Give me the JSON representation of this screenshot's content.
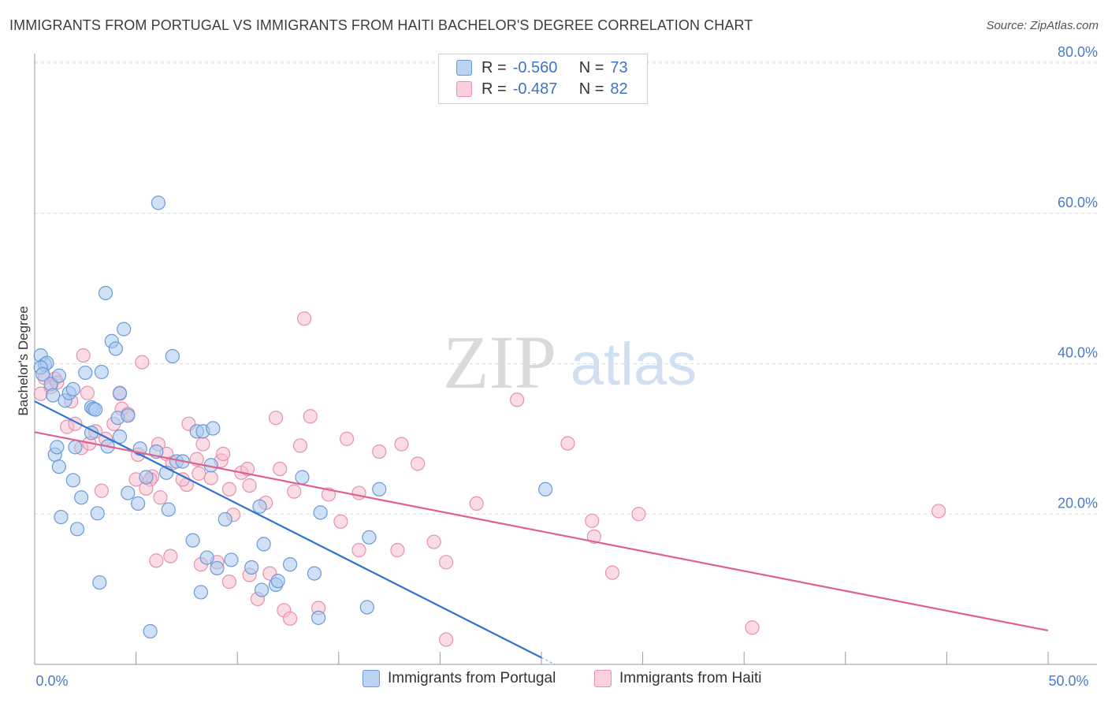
{
  "title": "IMMIGRANTS FROM PORTUGAL VS IMMIGRANTS FROM HAITI BACHELOR'S DEGREE CORRELATION CHART",
  "source": "Source: ZipAtlas.com",
  "watermark": {
    "zip": "ZIP",
    "atlas": "atlas"
  },
  "legend": {
    "r_label": "R =",
    "n_label": "N =",
    "portugal": {
      "r": "-0.560",
      "n": "73"
    },
    "haiti": {
      "r": "-0.487",
      "n": "82"
    }
  },
  "bottom_legend": {
    "portugal": "Immigrants from Portugal",
    "haiti": "Immigrants from Haiti"
  },
  "colors": {
    "portugal_fill": "#a9c8ef",
    "portugal_stroke": "#6b9ad8",
    "portugal_line": "#2f74d0",
    "haiti_fill": "#f6bfd0",
    "haiti_stroke": "#e890ac",
    "haiti_line": "#e0628c",
    "tick_text": "#4a7bc8"
  },
  "chart_data": {
    "type": "scatter",
    "title": "IMMIGRANTS FROM PORTUGAL VS IMMIGRANTS FROM HAITI BACHELOR'S DEGREE CORRELATION CHART",
    "xlabel": "",
    "ylabel": "Bachelor's Degree",
    "xlim": [
      0,
      50
    ],
    "ylim": [
      0,
      80
    ],
    "x_tick_labels": [
      "0.0%",
      "50.0%"
    ],
    "y_ticks": [
      20,
      40,
      60,
      80
    ],
    "y_tick_labels": [
      "20.0%",
      "40.0%",
      "60.0%",
      "80.0%"
    ],
    "series": [
      {
        "name": "Immigrants from Portugal",
        "r": -0.56,
        "n": 73,
        "trend": {
          "x0": 0,
          "y0": 35.0,
          "x1": 25.0,
          "y1": 0.9
        },
        "points": [
          [
            0.3,
            41.1
          ],
          [
            0.5,
            39.9
          ],
          [
            0.6,
            40.1
          ],
          [
            0.3,
            39.5
          ],
          [
            0.4,
            38.6
          ],
          [
            0.8,
            37.3
          ],
          [
            1.2,
            38.4
          ],
          [
            0.9,
            35.8
          ],
          [
            1.5,
            35.1
          ],
          [
            1.7,
            36.1
          ],
          [
            1.9,
            36.6
          ],
          [
            2.5,
            38.8
          ],
          [
            3.3,
            38.9
          ],
          [
            3.8,
            43.0
          ],
          [
            4.0,
            42.0
          ],
          [
            4.4,
            44.6
          ],
          [
            3.5,
            49.4
          ],
          [
            6.1,
            61.4
          ],
          [
            6.8,
            41.0
          ],
          [
            2.8,
            34.2
          ],
          [
            2.9,
            34.0
          ],
          [
            2.8,
            30.8
          ],
          [
            3.6,
            29.0
          ],
          [
            4.1,
            32.8
          ],
          [
            4.6,
            33.1
          ],
          [
            4.2,
            36.1
          ],
          [
            4.2,
            30.3
          ],
          [
            3.0,
            33.9
          ],
          [
            1.0,
            27.9
          ],
          [
            1.1,
            28.9
          ],
          [
            1.2,
            26.3
          ],
          [
            2.0,
            28.9
          ],
          [
            1.9,
            24.5
          ],
          [
            2.3,
            22.2
          ],
          [
            1.3,
            19.6
          ],
          [
            2.1,
            18.0
          ],
          [
            3.1,
            20.1
          ],
          [
            3.2,
            10.9
          ],
          [
            4.6,
            22.8
          ],
          [
            5.1,
            21.4
          ],
          [
            5.2,
            28.7
          ],
          [
            5.5,
            24.9
          ],
          [
            6.0,
            28.3
          ],
          [
            6.5,
            25.5
          ],
          [
            6.6,
            20.6
          ],
          [
            7.0,
            27.0
          ],
          [
            7.3,
            27.0
          ],
          [
            7.8,
            16.5
          ],
          [
            8.0,
            31.0
          ],
          [
            8.3,
            31.0
          ],
          [
            8.8,
            31.4
          ],
          [
            8.7,
            26.5
          ],
          [
            9.4,
            19.3
          ],
          [
            9.7,
            13.9
          ],
          [
            8.5,
            14.2
          ],
          [
            9.0,
            12.8
          ],
          [
            8.2,
            9.6
          ],
          [
            10.7,
            12.9
          ],
          [
            11.1,
            21.0
          ],
          [
            11.3,
            16.0
          ],
          [
            11.2,
            9.9
          ],
          [
            11.9,
            10.6
          ],
          [
            12.0,
            11.1
          ],
          [
            12.6,
            13.3
          ],
          [
            13.2,
            24.9
          ],
          [
            13.8,
            12.1
          ],
          [
            14.0,
            6.2
          ],
          [
            14.1,
            20.2
          ],
          [
            16.5,
            16.9
          ],
          [
            16.4,
            7.6
          ],
          [
            17.0,
            23.3
          ],
          [
            25.2,
            23.3
          ],
          [
            5.7,
            4.4
          ]
        ]
      },
      {
        "name": "Immigrants from Haiti",
        "r": -0.487,
        "n": 82,
        "trend": {
          "x0": 0,
          "y0": 30.9,
          "x1": 50,
          "y1": 4.5
        },
        "points": [
          [
            0.3,
            36.0
          ],
          [
            0.5,
            38.1
          ],
          [
            0.8,
            36.9
          ],
          [
            1.0,
            38.0
          ],
          [
            1.1,
            37.5
          ],
          [
            1.8,
            35.0
          ],
          [
            2.4,
            41.1
          ],
          [
            2.6,
            36.1
          ],
          [
            1.6,
            31.6
          ],
          [
            2.0,
            32.0
          ],
          [
            2.3,
            28.8
          ],
          [
            2.7,
            29.4
          ],
          [
            3.0,
            31.0
          ],
          [
            3.5,
            30.0
          ],
          [
            3.9,
            32.0
          ],
          [
            4.3,
            34.0
          ],
          [
            4.6,
            33.3
          ],
          [
            4.2,
            36.0
          ],
          [
            5.3,
            40.2
          ],
          [
            5.1,
            27.9
          ],
          [
            5.8,
            25.0
          ],
          [
            6.1,
            29.3
          ],
          [
            6.5,
            28.0
          ],
          [
            6.8,
            26.8
          ],
          [
            5.0,
            24.6
          ],
          [
            5.7,
            24.6
          ],
          [
            5.5,
            23.4
          ],
          [
            6.2,
            22.2
          ],
          [
            6.0,
            13.8
          ],
          [
            6.7,
            14.4
          ],
          [
            3.3,
            23.1
          ],
          [
            7.6,
            32.0
          ],
          [
            8.0,
            27.3
          ],
          [
            8.3,
            29.3
          ],
          [
            7.5,
            23.9
          ],
          [
            7.3,
            24.6
          ],
          [
            8.1,
            25.4
          ],
          [
            8.7,
            24.8
          ],
          [
            9.2,
            27.1
          ],
          [
            9.3,
            28.0
          ],
          [
            9.6,
            23.3
          ],
          [
            10.2,
            25.5
          ],
          [
            10.5,
            26.0
          ],
          [
            10.6,
            23.8
          ],
          [
            9.8,
            19.9
          ],
          [
            9.0,
            13.6
          ],
          [
            9.6,
            11.0
          ],
          [
            10.6,
            11.9
          ],
          [
            11.0,
            8.7
          ],
          [
            11.4,
            21.5
          ],
          [
            11.6,
            12.1
          ],
          [
            11.9,
            32.8
          ],
          [
            12.1,
            26.0
          ],
          [
            12.3,
            7.2
          ],
          [
            12.6,
            6.1
          ],
          [
            12.8,
            23.0
          ],
          [
            13.1,
            29.1
          ],
          [
            13.6,
            33.0
          ],
          [
            13.3,
            46.0
          ],
          [
            14.0,
            7.5
          ],
          [
            14.5,
            22.6
          ],
          [
            15.1,
            19.0
          ],
          [
            15.4,
            30.0
          ],
          [
            16.0,
            22.8
          ],
          [
            17.0,
            28.3
          ],
          [
            16.0,
            15.2
          ],
          [
            17.9,
            15.2
          ],
          [
            18.1,
            29.3
          ],
          [
            18.9,
            26.7
          ],
          [
            19.7,
            16.3
          ],
          [
            20.3,
            13.6
          ],
          [
            20.3,
            3.3
          ],
          [
            21.8,
            21.4
          ],
          [
            23.8,
            35.2
          ],
          [
            26.3,
            29.4
          ],
          [
            27.5,
            19.1
          ],
          [
            27.6,
            17.0
          ],
          [
            28.5,
            12.2
          ],
          [
            29.8,
            20.0
          ],
          [
            35.4,
            4.9
          ],
          [
            44.6,
            20.4
          ],
          [
            8.2,
            13.3
          ]
        ]
      }
    ]
  }
}
